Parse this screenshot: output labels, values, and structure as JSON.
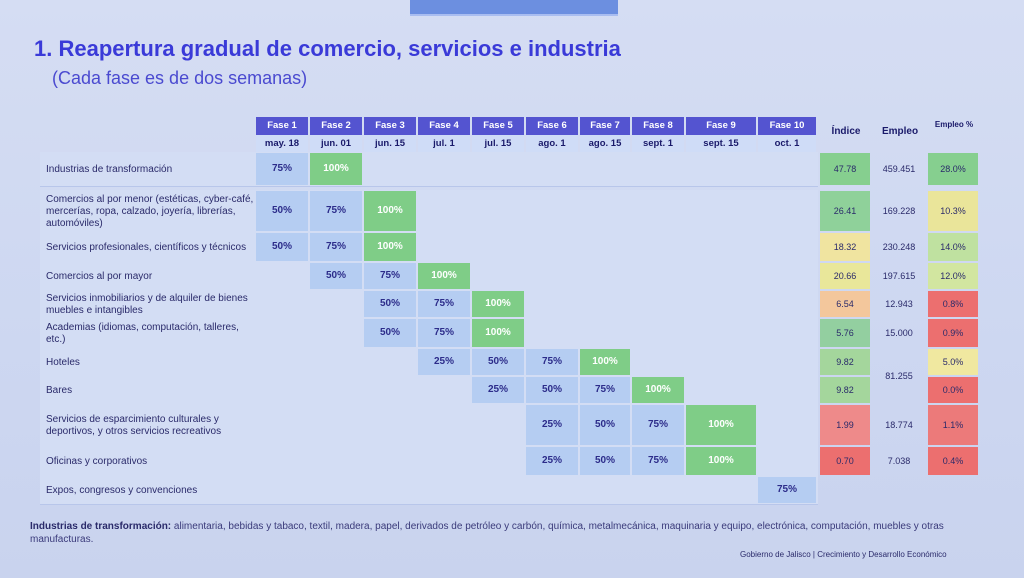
{
  "title": "1. Reapertura gradual de comercio, servicios e industria",
  "subtitle": "(Cada fase es de dos semanas)",
  "phases": [
    "Fase 1",
    "Fase 2",
    "Fase 3",
    "Fase 4",
    "Fase 5",
    "Fase 6",
    "Fase 7",
    "Fase 8",
    "Fase 9",
    "Fase 10"
  ],
  "dates": [
    "may. 18",
    "jun. 01",
    "jun. 15",
    "jul. 1",
    "jul. 15",
    "ago. 1",
    "ago. 15",
    "sept. 1",
    "sept. 15",
    "oct. 1"
  ],
  "col_headers": {
    "indice": "Índice",
    "empleo": "Empleo",
    "empleo_pct": "Empleo %"
  },
  "rows": [
    {
      "label": "Industrias de transformación",
      "values": [
        "75%",
        "100%"
      ],
      "start": 0,
      "indice": "47.78",
      "empleo": "459.451",
      "empleo_pct": "28.0%"
    },
    {
      "label": "Comercios al por menor (estéticas, cyber-café, mercerías, ropa, calzado, joyería, librerías, automóviles)",
      "values": [
        "50%",
        "75%",
        "100%"
      ],
      "start": 0,
      "indice": "26.41",
      "empleo": "169.228",
      "empleo_pct": "10.3%"
    },
    {
      "label": "Servicios profesionales, científicos y técnicos",
      "values": [
        "50%",
        "75%",
        "100%"
      ],
      "start": 0,
      "indice": "18.32",
      "empleo": "230.248",
      "empleo_pct": "14.0%"
    },
    {
      "label": "Comercios al por mayor",
      "values": [
        "50%",
        "75%",
        "100%"
      ],
      "start": 1,
      "indice": "20.66",
      "empleo": "197.615",
      "empleo_pct": "12.0%"
    },
    {
      "label": "Servicios inmobiliarios y de alquiler de bienes muebles e intangibles",
      "values": [
        "50%",
        "75%",
        "100%"
      ],
      "start": 2,
      "indice": "6.54",
      "empleo": "12.943",
      "empleo_pct": "0.8%"
    },
    {
      "label": "Academias (idiomas, computación, talleres, etc.)",
      "values": [
        "50%",
        "75%",
        "100%"
      ],
      "start": 2,
      "indice": "5.76",
      "empleo": "15.000",
      "empleo_pct": "0.9%"
    },
    {
      "label": "Hoteles",
      "values": [
        "25%",
        "50%",
        "75%",
        "100%"
      ],
      "start": 3,
      "indice": "9.82",
      "empleo": "",
      "empleo_pct": "5.0%"
    },
    {
      "label": "Bares",
      "values": [
        "25%",
        "50%",
        "75%",
        "100%"
      ],
      "start": 4,
      "indice": "9.82",
      "empleo": "",
      "empleo_pct": "0.0%"
    },
    {
      "label": "Servicios de esparcimiento culturales y deportivos, y otros servicios recreativos",
      "values": [
        "25%",
        "50%",
        "75%",
        "100%"
      ],
      "start": 5,
      "indice": "1.99",
      "empleo": "18.774",
      "empleo_pct": "1.1%"
    },
    {
      "label": "Oficinas y corporativos",
      "values": [
        "25%",
        "50%",
        "75%",
        "100%"
      ],
      "start": 5,
      "indice": "0.70",
      "empleo": "7.038",
      "empleo_pct": "0.4%"
    },
    {
      "label": "Expos, congresos y convenciones",
      "values": [
        "75%"
      ],
      "start": 9,
      "indice": "",
      "empleo": "",
      "empleo_pct": ""
    }
  ],
  "merged_empleo": "81.255",
  "colors": {
    "indice": [
      "#86cf8f",
      "#8fd19a",
      "#f0e4a0",
      "#e9e79a",
      "#f3c79c",
      "#93cfa0",
      "#a4d69c",
      "#a4d69c",
      "#ee8a8a",
      "#ec6f6f"
    ],
    "empleo_pct": [
      "#86cf8f",
      "#eae59a",
      "#bfe1a0",
      "#d2e6a0",
      "#ec6f6f",
      "#ec6f6f",
      "#f0e8a0",
      "#ec6f6f",
      "#ec7a7a",
      "#ec6f6f"
    ]
  },
  "footnote_bold": "Industrias de transformación:",
  "footnote": " alimentaria, bebidas y tabaco, textil, madera, papel, derivados de petróleo y carbón, química, metalmecánica, maquinaria y equipo, electrónica, computación, muebles y otras manufacturas.",
  "credit": "Gobierno de Jalisco | Crecimiento y Desarrollo Económico"
}
